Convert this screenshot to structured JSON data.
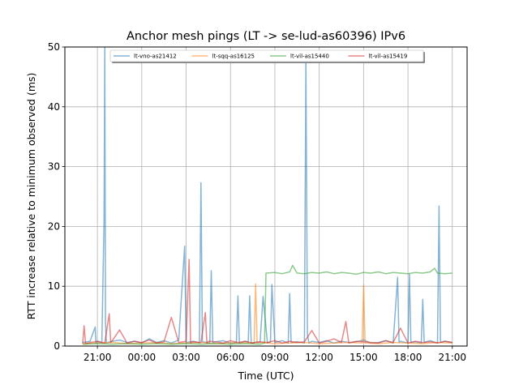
{
  "chart_data": {
    "type": "line",
    "title": "Anchor mesh pings (LT -> se-lud-as60396) IPv6",
    "xlabel": "Time (UTC)",
    "ylabel": "RTT increase relative to minimum observed (ms)",
    "x_ticks": [
      "21:00",
      "00:00",
      "03:00",
      "06:00",
      "09:00",
      "12:00",
      "15:00",
      "18:00",
      "21:00"
    ],
    "x_tick_hours": [
      21,
      24,
      27,
      30,
      33,
      36,
      39,
      42,
      45
    ],
    "xlim": [
      18.8,
      46.0
    ],
    "ylim": [
      0,
      50
    ],
    "y_ticks": [
      0,
      10,
      20,
      30,
      40,
      50
    ],
    "grid": true,
    "legend": {
      "placement": "top",
      "columns": 4
    },
    "series": [
      {
        "name": "lt-vno-as21412",
        "color": "#1f77b4",
        "x": [
          20.0,
          20.5,
          20.85,
          20.9,
          21.0,
          21.3,
          21.45,
          21.5,
          21.55,
          21.6,
          21.7,
          22.0,
          22.5,
          23.0,
          23.5,
          24.0,
          24.5,
          25.0,
          25.5,
          26.0,
          26.5,
          26.9,
          27.0,
          27.5,
          27.9,
          28.0,
          28.1,
          28.6,
          28.7,
          28.8,
          29.0,
          29.5,
          30.0,
          30.4,
          30.5,
          30.6,
          31.0,
          31.2,
          31.3,
          31.4,
          31.8,
          32.0,
          32.2,
          32.5,
          32.7,
          32.8,
          33.0,
          33.5,
          33.9,
          34.0,
          34.1,
          34.5,
          35.0,
          35.1,
          35.2,
          35.3,
          35.5,
          36.0,
          36.5,
          37.0,
          37.5,
          38.0,
          38.5,
          39.0,
          39.5,
          40.0,
          40.5,
          41.0,
          41.3,
          41.4,
          41.5,
          42.0,
          42.1,
          42.2,
          42.5,
          42.9,
          43.0,
          43.1,
          43.5,
          44.0,
          44.1,
          44.2,
          44.5,
          45.0
        ],
        "y": [
          0.6,
          0.8,
          3.2,
          0.5,
          0.8,
          0.6,
          21.0,
          50.0,
          4.0,
          0.5,
          0.6,
          0.8,
          1.0,
          0.6,
          0.8,
          0.5,
          1.2,
          0.6,
          0.9,
          0.5,
          1.0,
          16.7,
          0.6,
          0.8,
          0.5,
          27.3,
          0.7,
          0.5,
          12.6,
          0.6,
          0.7,
          0.9,
          0.5,
          0.6,
          8.4,
          0.5,
          0.8,
          0.6,
          8.4,
          0.5,
          0.7,
          0.6,
          8.3,
          0.5,
          0.7,
          10.3,
          0.6,
          0.9,
          0.5,
          8.8,
          0.6,
          0.7,
          0.5,
          48.0,
          2.0,
          0.5,
          0.8,
          0.6,
          0.9,
          0.5,
          0.8,
          0.6,
          0.7,
          1.0,
          0.5,
          0.6,
          0.9,
          0.5,
          11.5,
          0.6,
          0.8,
          0.5,
          12.0,
          0.6,
          0.7,
          0.5,
          7.8,
          0.6,
          0.9,
          0.5,
          23.4,
          0.6,
          0.8,
          0.6
        ]
      },
      {
        "name": "lt-sqq-as16125",
        "color": "#ff7f0e",
        "x": [
          20.0,
          21.0,
          22.0,
          23.0,
          24.0,
          25.0,
          26.0,
          27.0,
          28.0,
          29.0,
          30.0,
          31.0,
          31.6,
          31.7,
          31.8,
          32.0,
          33.0,
          34.0,
          35.0,
          36.0,
          37.0,
          38.0,
          38.9,
          39.0,
          39.1,
          40.0,
          41.0,
          42.0,
          43.0,
          44.0,
          45.0
        ],
        "y": [
          0.4,
          0.5,
          0.6,
          0.4,
          0.5,
          0.6,
          0.4,
          0.5,
          0.6,
          0.4,
          0.5,
          0.6,
          0.5,
          10.4,
          0.5,
          0.6,
          0.4,
          0.5,
          0.6,
          0.4,
          0.5,
          0.6,
          0.5,
          10.2,
          0.5,
          0.4,
          0.6,
          0.5,
          0.4,
          0.6,
          0.5
        ]
      },
      {
        "name": "lt-vil-as15440",
        "color": "#2ca02c",
        "x": [
          20.0,
          21.0,
          22.0,
          23.0,
          24.0,
          25.0,
          26.0,
          27.0,
          28.0,
          29.0,
          30.0,
          31.0,
          32.0,
          32.3,
          32.4,
          33.0,
          33.5,
          34.0,
          34.2,
          34.5,
          35.0,
          35.5,
          36.0,
          36.5,
          37.0,
          37.5,
          38.0,
          38.5,
          39.0,
          39.5,
          40.0,
          40.5,
          41.0,
          41.5,
          42.0,
          42.5,
          43.0,
          43.5,
          43.8,
          44.0,
          44.5,
          45.0
        ],
        "y": [
          0.3,
          0.4,
          0.3,
          0.4,
          0.3,
          0.4,
          0.3,
          0.4,
          0.3,
          0.4,
          0.3,
          0.4,
          0.3,
          0.5,
          12.2,
          12.3,
          12.1,
          12.4,
          13.5,
          12.2,
          12.1,
          12.3,
          12.2,
          12.4,
          12.1,
          12.3,
          12.2,
          12.0,
          12.3,
          12.2,
          12.4,
          12.1,
          12.3,
          12.2,
          12.1,
          12.3,
          12.2,
          12.4,
          13.0,
          12.2,
          12.1,
          12.2
        ]
      },
      {
        "name": "lt-vil-as15419",
        "color": "#d62728",
        "x": [
          20.0,
          20.1,
          20.2,
          20.5,
          21.0,
          21.5,
          21.8,
          21.9,
          22.0,
          22.5,
          23.0,
          23.5,
          24.0,
          24.5,
          25.0,
          25.5,
          26.0,
          26.5,
          27.0,
          27.2,
          27.3,
          27.4,
          28.0,
          28.3,
          28.4,
          28.5,
          29.0,
          29.5,
          30.0,
          30.5,
          31.0,
          31.5,
          32.0,
          32.5,
          33.0,
          33.5,
          34.0,
          34.5,
          35.0,
          35.5,
          36.0,
          36.5,
          37.0,
          37.5,
          37.8,
          38.0,
          38.5,
          39.0,
          39.5,
          40.0,
          40.5,
          41.0,
          41.5,
          42.0,
          42.5,
          43.0,
          43.5,
          44.0,
          44.5,
          45.0
        ],
        "y": [
          0.4,
          3.4,
          0.4,
          0.6,
          0.8,
          0.5,
          5.4,
          0.6,
          0.9,
          2.7,
          0.5,
          0.8,
          0.6,
          1.0,
          0.5,
          0.7,
          4.8,
          0.6,
          0.8,
          14.5,
          0.5,
          0.7,
          0.6,
          5.6,
          0.5,
          0.8,
          0.7,
          0.5,
          0.9,
          0.6,
          0.8,
          0.5,
          0.7,
          0.6,
          0.9,
          0.5,
          0.8,
          0.6,
          0.7,
          2.6,
          0.5,
          0.8,
          1.2,
          0.6,
          4.1,
          0.5,
          0.8,
          0.7,
          0.6,
          0.5,
          0.9,
          0.6,
          3.0,
          0.5,
          0.8,
          0.6,
          0.7,
          0.5,
          0.8,
          0.6
        ]
      }
    ]
  }
}
